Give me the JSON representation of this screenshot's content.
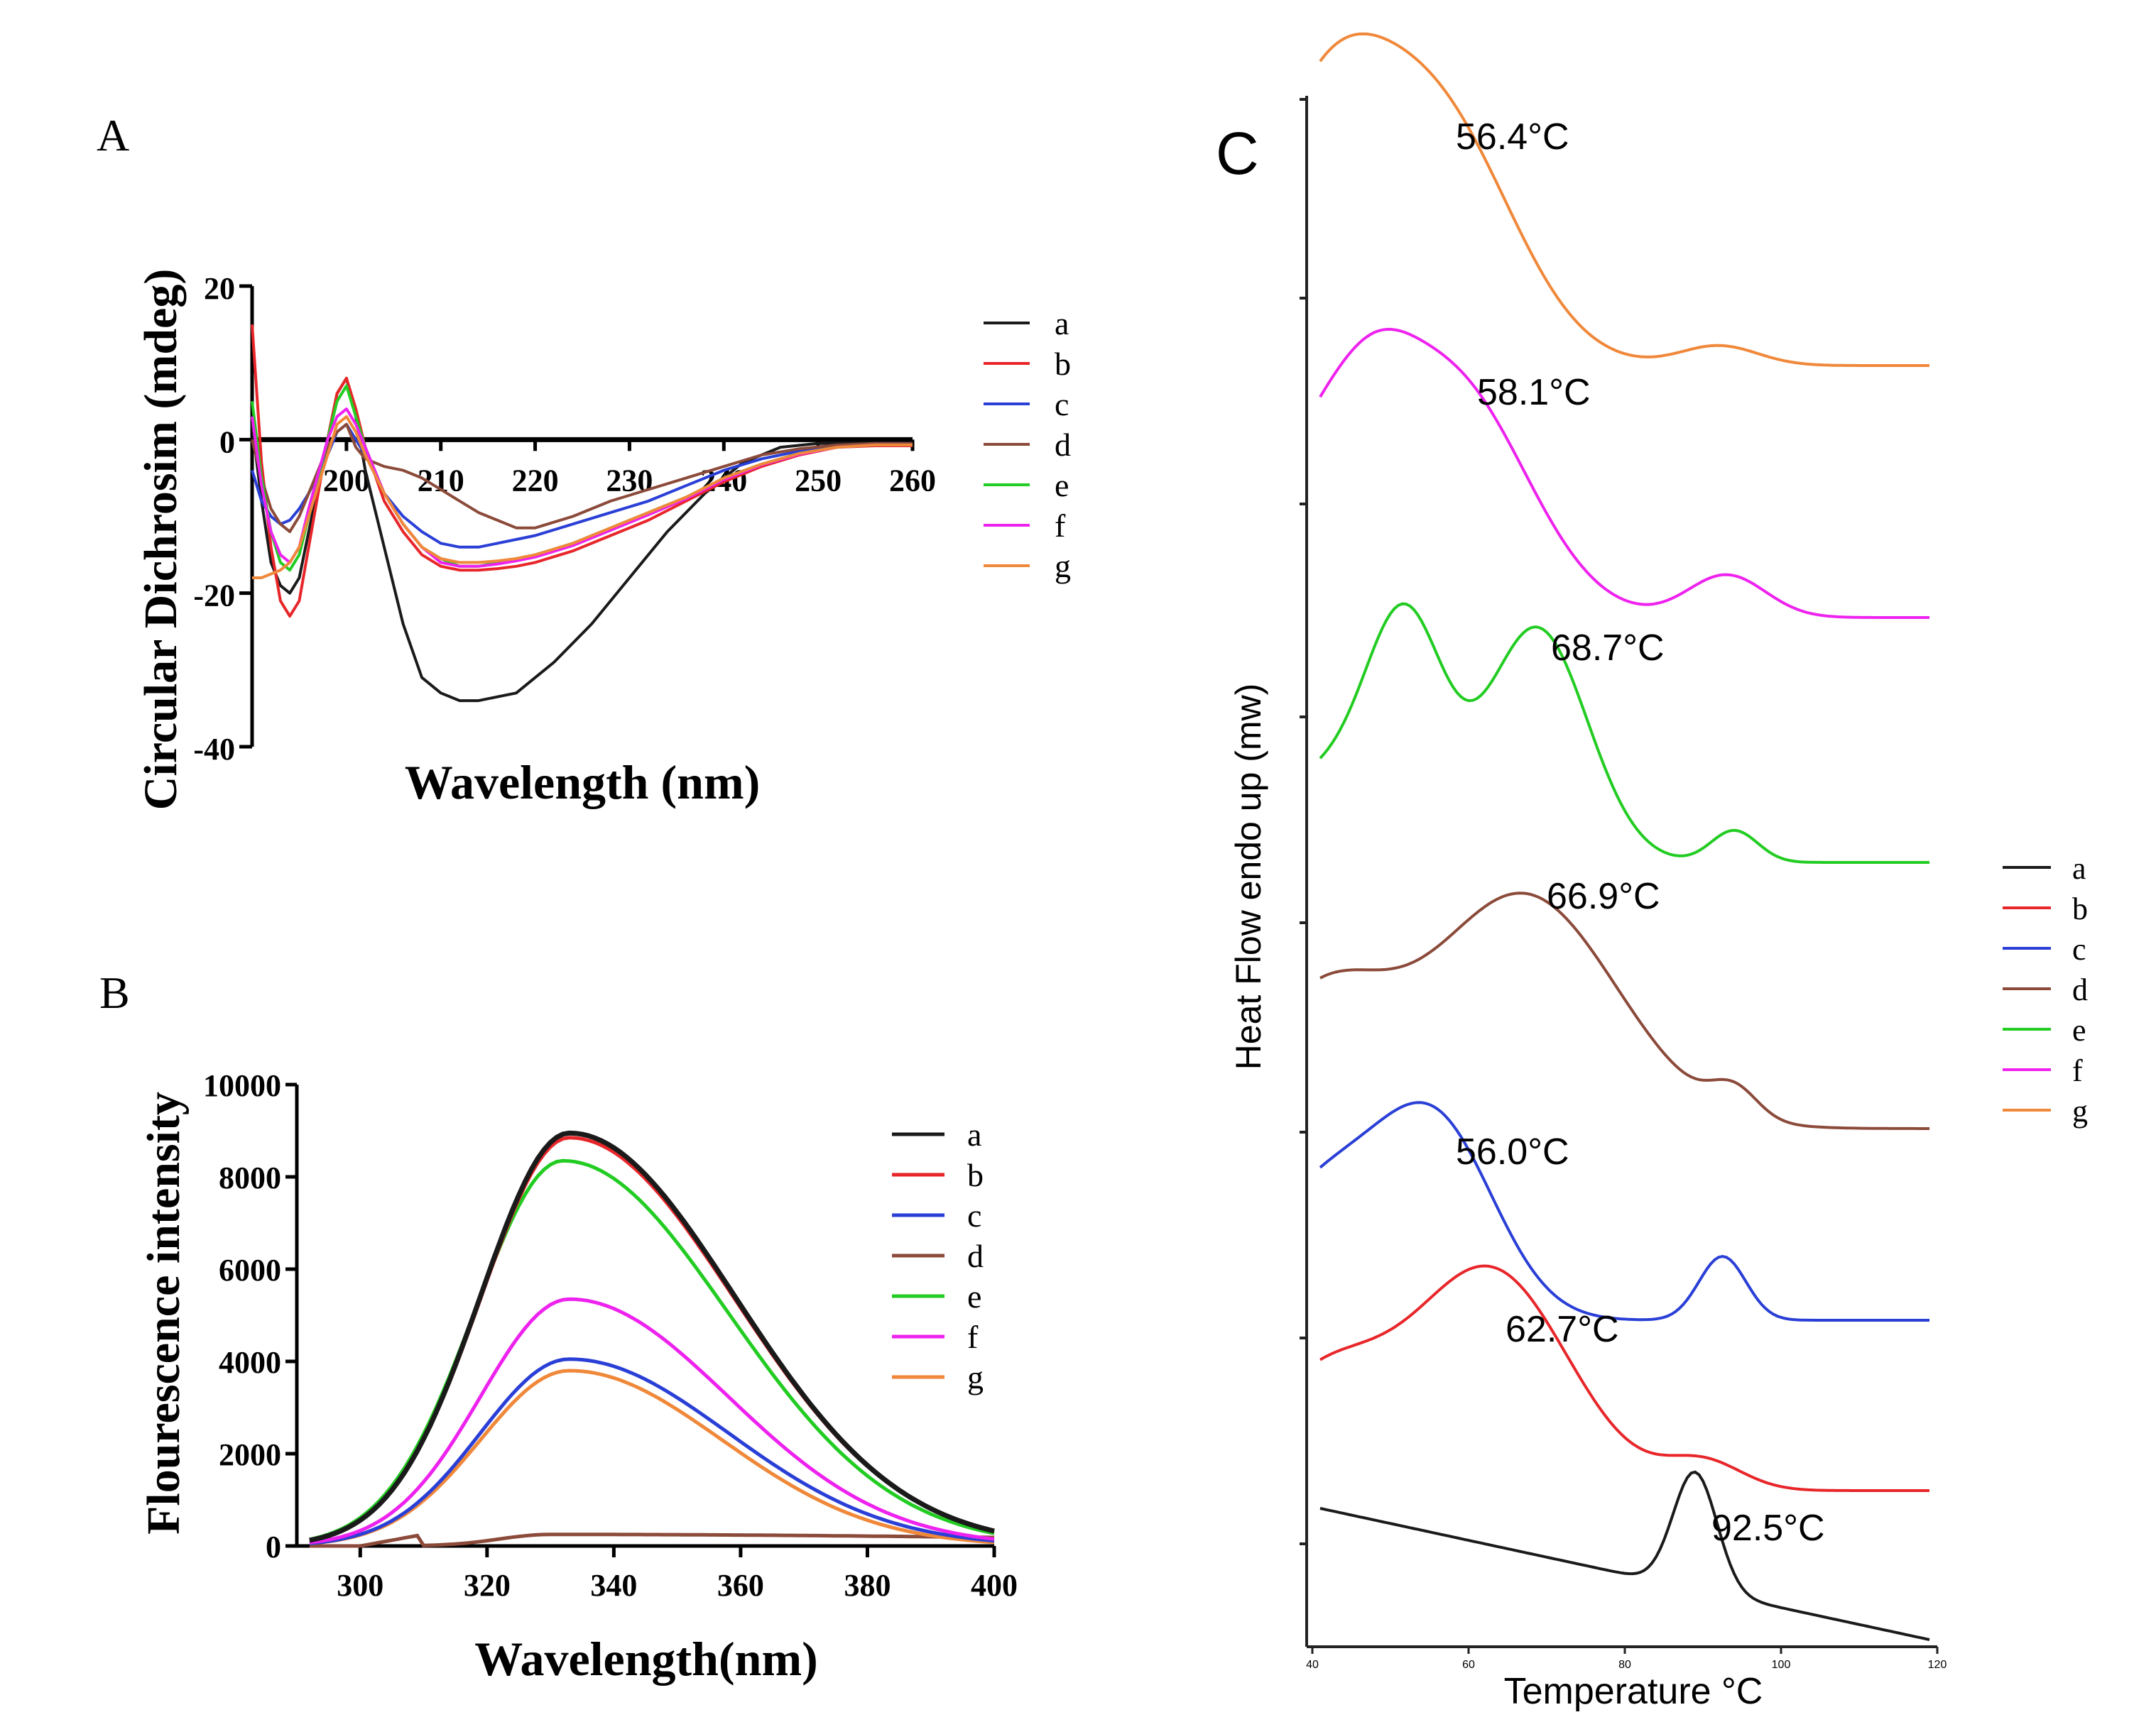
{
  "colors": {
    "a": "#1a1a1a",
    "b": "#e8262a",
    "c": "#2a3fd6",
    "d": "#8b4a3a",
    "e": "#22cc22",
    "f": "#ee22ee",
    "g": "#f0883a",
    "axis": "#000000"
  },
  "chart_data": [
    {
      "panel_label": "A",
      "type": "line",
      "title": "",
      "xlabel": "Wavelength (nm)",
      "ylabel": "Circular Dichrosim (mdeg)",
      "xlim": [
        190,
        260
      ],
      "ylim": [
        -40,
        20
      ],
      "xticks": [
        200,
        210,
        220,
        230,
        240,
        250,
        260
      ],
      "yticks": [
        20,
        0,
        -20,
        -40
      ],
      "legend": [
        "a",
        "b",
        "c",
        "d",
        "e",
        "f",
        "g"
      ],
      "legend_placement": "right",
      "series": [
        {
          "name": "a",
          "x": [
            190,
            191,
            192,
            193,
            194,
            195,
            196,
            198,
            199,
            200,
            201,
            202,
            204,
            206,
            208,
            210,
            212,
            214,
            216,
            218,
            220,
            222,
            226,
            230,
            234,
            238,
            242,
            246,
            250,
            255,
            260
          ],
          "y": [
            2,
            -8,
            -16,
            -19,
            -20,
            -18,
            -12,
            0,
            6,
            8,
            3,
            -4,
            -14,
            -24,
            -31,
            -33,
            -34,
            -34,
            -33.5,
            -33,
            -31,
            -29,
            -24,
            -18,
            -12,
            -7,
            -3,
            -1,
            -0.5,
            -0.5,
            -0.5
          ]
        },
        {
          "name": "b",
          "x": [
            190,
            191,
            192,
            193,
            194,
            195,
            196,
            198,
            199,
            200,
            201,
            202,
            204,
            206,
            208,
            210,
            212,
            214,
            216,
            218,
            220,
            224,
            228,
            232,
            236,
            240,
            244,
            248,
            252,
            256,
            260
          ],
          "y": [
            15,
            -3,
            -14,
            -21,
            -23,
            -21,
            -14,
            0,
            6,
            8,
            4,
            -1,
            -8,
            -12,
            -15,
            -16.5,
            -17,
            -17,
            -16.8,
            -16.5,
            -16,
            -14.5,
            -12.5,
            -10.5,
            -8,
            -5.5,
            -3.5,
            -2,
            -1,
            -0.8,
            -0.8
          ]
        },
        {
          "name": "c",
          "x": [
            190,
            191,
            192,
            193,
            194,
            195,
            196,
            198,
            199,
            200,
            201,
            202,
            204,
            206,
            208,
            210,
            212,
            214,
            216,
            218,
            220,
            224,
            228,
            232,
            236,
            240,
            244,
            248,
            252,
            256,
            260
          ],
          "y": [
            -4,
            -8,
            -10,
            -11,
            -10.5,
            -9,
            -7,
            -2,
            1,
            2,
            0,
            -2,
            -7,
            -10,
            -12,
            -13.5,
            -14,
            -14,
            -13.5,
            -13,
            -12.5,
            -11,
            -9.5,
            -8,
            -6,
            -4,
            -2.5,
            -1.5,
            -0.8,
            -0.5,
            -0.5
          ]
        },
        {
          "name": "d",
          "x": [
            190,
            191,
            192,
            193,
            194,
            195,
            196,
            198,
            199,
            200,
            201,
            202,
            204,
            206,
            208,
            210,
            212,
            214,
            216,
            218,
            220,
            224,
            228,
            232,
            236,
            240,
            244,
            248,
            252,
            256,
            260
          ],
          "y": [
            0,
            -5,
            -9,
            -11,
            -12,
            -10,
            -7,
            -1,
            1,
            2,
            -1,
            -2.5,
            -3.5,
            -4,
            -5,
            -6.5,
            -8,
            -9.5,
            -10.5,
            -11.5,
            -11.5,
            -10,
            -8,
            -6.5,
            -5,
            -3.5,
            -2,
            -1.2,
            -0.7,
            -0.5,
            -0.5
          ]
        },
        {
          "name": "e",
          "x": [
            190,
            191,
            192,
            193,
            194,
            195,
            196,
            198,
            199,
            200,
            201,
            202,
            204,
            206,
            208,
            210,
            212,
            214,
            216,
            218,
            220,
            224,
            228,
            232,
            236,
            240,
            244,
            248,
            252,
            256,
            260
          ],
          "y": [
            5,
            -5,
            -12,
            -16,
            -17,
            -15,
            -10,
            0,
            5,
            7,
            3,
            -1,
            -7,
            -11,
            -14,
            -15.5,
            -16.5,
            -16.5,
            -16,
            -15.5,
            -15,
            -13.5,
            -11.5,
            -9.5,
            -7.5,
            -5,
            -3.2,
            -1.8,
            -1,
            -0.7,
            -0.7
          ]
        },
        {
          "name": "f",
          "x": [
            190,
            191,
            192,
            193,
            194,
            195,
            196,
            198,
            199,
            200,
            201,
            202,
            204,
            206,
            208,
            210,
            212,
            214,
            216,
            218,
            220,
            224,
            228,
            232,
            236,
            240,
            244,
            248,
            252,
            256,
            260
          ],
          "y": [
            3,
            -6,
            -12,
            -15,
            -16,
            -14,
            -9,
            0,
            3,
            4,
            2,
            -1,
            -7,
            -11,
            -14,
            -16,
            -16.5,
            -16.5,
            -16.2,
            -15.8,
            -15.3,
            -13.8,
            -11.8,
            -9.8,
            -7.7,
            -5.2,
            -3.3,
            -1.9,
            -1,
            -0.7,
            -0.7
          ]
        },
        {
          "name": "g",
          "x": [
            190,
            191,
            192,
            193,
            194,
            195,
            196,
            198,
            199,
            200,
            201,
            202,
            204,
            206,
            208,
            210,
            212,
            214,
            216,
            218,
            220,
            224,
            228,
            232,
            236,
            240,
            244,
            248,
            252,
            256,
            260
          ],
          "y": [
            -18,
            -18,
            -17.5,
            -17,
            -16,
            -14,
            -10,
            -2,
            2,
            3,
            1,
            -2,
            -7,
            -11,
            -14,
            -15.5,
            -16,
            -16,
            -15.8,
            -15.5,
            -15,
            -13.5,
            -11.5,
            -9.5,
            -7.5,
            -5,
            -3.2,
            -1.8,
            -1,
            -0.7,
            -0.7
          ]
        }
      ]
    },
    {
      "panel_label": "B",
      "type": "line",
      "title": "",
      "xlabel": "Wavelength(nm)",
      "ylabel": "Flourescence intensity",
      "xlim": [
        290,
        400
      ],
      "ylim": [
        0,
        10000
      ],
      "xticks": [
        300,
        320,
        340,
        360,
        380,
        400
      ],
      "yticks": [
        0,
        2000,
        4000,
        6000,
        8000,
        10000
      ],
      "legend": [
        "a",
        "b",
        "c",
        "d",
        "e",
        "f",
        "g"
      ],
      "legend_placement": "top-right",
      "series": [
        {
          "name": "a",
          "peak": 8950,
          "center": 333,
          "left_sigma": 14,
          "right_sigma": 26
        },
        {
          "name": "b",
          "peak": 8850,
          "center": 333,
          "left_sigma": 14,
          "right_sigma": 26
        },
        {
          "name": "c",
          "peak": 4050,
          "center": 333,
          "left_sigma": 14,
          "right_sigma": 25
        },
        {
          "name": "d",
          "peak": 250,
          "center": 330,
          "left_sigma": 8,
          "right_sigma": 90
        },
        {
          "name": "e",
          "peak": 8350,
          "center": 332,
          "left_sigma": 14,
          "right_sigma": 26
        },
        {
          "name": "f",
          "peak": 5350,
          "center": 333,
          "left_sigma": 14,
          "right_sigma": 25
        },
        {
          "name": "g",
          "peak": 3800,
          "center": 333,
          "left_sigma": 14,
          "right_sigma": 24
        }
      ]
    },
    {
      "panel_label": "C",
      "type": "line",
      "title": "",
      "xlabel": "Temperature °C",
      "ylabel": "Heat Flow endo up (mw)",
      "xlim": [
        40,
        120
      ],
      "xticks": [
        40,
        60,
        80,
        100,
        120
      ],
      "legend": [
        "a",
        "b",
        "c",
        "d",
        "e",
        "f",
        "g"
      ],
      "legend_placement": "right",
      "traces_top_to_bottom": [
        "g",
        "f",
        "e",
        "d",
        "c",
        "b",
        "a"
      ],
      "peak_annotations": [
        {
          "series": "g",
          "label": "56.4°C",
          "peak_temp": 56.4
        },
        {
          "series": "f",
          "label": "58.1°C",
          "peak_temp": 58.1
        },
        {
          "series": "e",
          "label": "68.7°C",
          "peak_temp": 68.7
        },
        {
          "series": "d",
          "label": "66.9°C",
          "peak_temp": 66.9
        },
        {
          "series": "c",
          "label": "56.0°C",
          "peak_temp": 56.0
        },
        {
          "series": "b",
          "label": "62.7°C",
          "peak_temp": 62.7
        },
        {
          "series": "a",
          "label": "92.5°C",
          "peak_temp": 92.5
        }
      ]
    }
  ]
}
